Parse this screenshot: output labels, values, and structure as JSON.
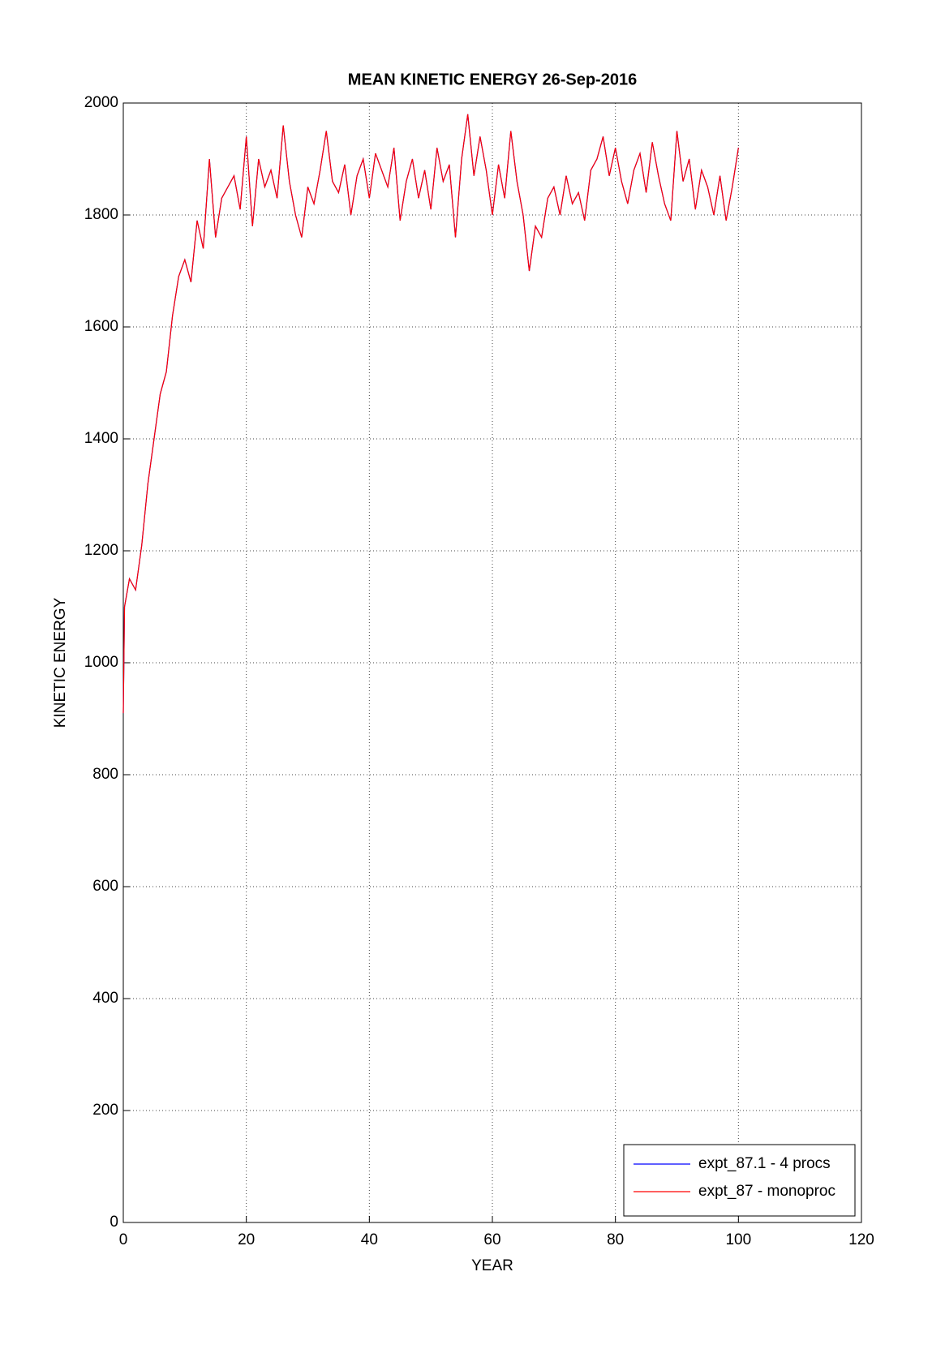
{
  "chart_data": {
    "type": "line",
    "title": "MEAN KINETIC ENERGY 26-Sep-2016",
    "xlabel": "YEAR",
    "ylabel": "KINETIC ENERGY",
    "x": [
      0,
      0.2,
      1,
      2,
      3,
      4,
      5,
      6,
      7,
      8,
      9,
      10,
      11,
      12,
      13,
      14,
      15,
      16,
      17,
      18,
      19,
      20,
      21,
      22,
      23,
      24,
      25,
      26,
      27,
      28,
      29,
      30,
      31,
      32,
      33,
      34,
      35,
      36,
      37,
      38,
      39,
      40,
      41,
      42,
      43,
      44,
      45,
      46,
      47,
      48,
      49,
      50,
      51,
      52,
      53,
      54,
      55,
      56,
      57,
      58,
      59,
      60,
      61,
      62,
      63,
      64,
      65,
      66,
      67,
      68,
      69,
      70,
      71,
      72,
      73,
      74,
      75,
      76,
      77,
      78,
      79,
      80,
      81,
      82,
      83,
      84,
      85,
      86,
      87,
      88,
      89,
      90,
      91,
      92,
      93,
      94,
      95,
      96,
      97,
      98,
      99,
      100
    ],
    "series": [
      {
        "name": "expt_87.1 - 4 procs",
        "color": "#0000ff",
        "values": [
          910,
          1100,
          1150,
          1130,
          1210,
          1320,
          1400,
          1480,
          1520,
          1620,
          1690,
          1720,
          1680,
          1790,
          1740,
          1900,
          1760,
          1830,
          1850,
          1870,
          1810,
          1940,
          1780,
          1900,
          1850,
          1880,
          1830,
          1960,
          1860,
          1800,
          1760,
          1850,
          1820,
          1880,
          1950,
          1860,
          1840,
          1890,
          1800,
          1870,
          1900,
          1830,
          1910,
          1880,
          1850,
          1920,
          1790,
          1860,
          1900,
          1830,
          1880,
          1810,
          1920,
          1860,
          1890,
          1760,
          1900,
          1980,
          1870,
          1940,
          1880,
          1800,
          1890,
          1830,
          1950,
          1860,
          1800,
          1700,
          1780,
          1760,
          1830,
          1850,
          1800,
          1870,
          1820,
          1840,
          1790,
          1880,
          1900,
          1940,
          1870,
          1920,
          1860,
          1820,
          1880,
          1910,
          1840,
          1930,
          1870,
          1820,
          1790,
          1950,
          1860,
          1900,
          1810,
          1880,
          1850,
          1800,
          1870,
          1790,
          1850,
          1920
        ]
      },
      {
        "name": "expt_87 - monoproc",
        "color": "#ff0000",
        "values": [
          910,
          1100,
          1150,
          1130,
          1210,
          1320,
          1400,
          1480,
          1520,
          1620,
          1690,
          1720,
          1680,
          1790,
          1740,
          1900,
          1760,
          1830,
          1850,
          1870,
          1810,
          1940,
          1780,
          1900,
          1850,
          1880,
          1830,
          1960,
          1860,
          1800,
          1760,
          1850,
          1820,
          1880,
          1950,
          1860,
          1840,
          1890,
          1800,
          1870,
          1900,
          1830,
          1910,
          1880,
          1850,
          1920,
          1790,
          1860,
          1900,
          1830,
          1880,
          1810,
          1920,
          1860,
          1890,
          1760,
          1900,
          1980,
          1870,
          1940,
          1880,
          1800,
          1890,
          1830,
          1950,
          1860,
          1800,
          1700,
          1780,
          1760,
          1830,
          1850,
          1800,
          1870,
          1820,
          1840,
          1790,
          1880,
          1900,
          1940,
          1870,
          1920,
          1860,
          1820,
          1880,
          1910,
          1840,
          1930,
          1870,
          1820,
          1790,
          1950,
          1860,
          1900,
          1810,
          1880,
          1850,
          1800,
          1870,
          1790,
          1850,
          1920
        ]
      }
    ],
    "xlim": [
      0,
      120
    ],
    "xticks": [
      0,
      20,
      40,
      60,
      80,
      100,
      120
    ],
    "ylim": [
      0,
      2000
    ],
    "yticks": [
      0,
      200,
      400,
      600,
      800,
      1000,
      1200,
      1400,
      1600,
      1800,
      2000
    ],
    "grid": true,
    "legend": "lower right"
  }
}
